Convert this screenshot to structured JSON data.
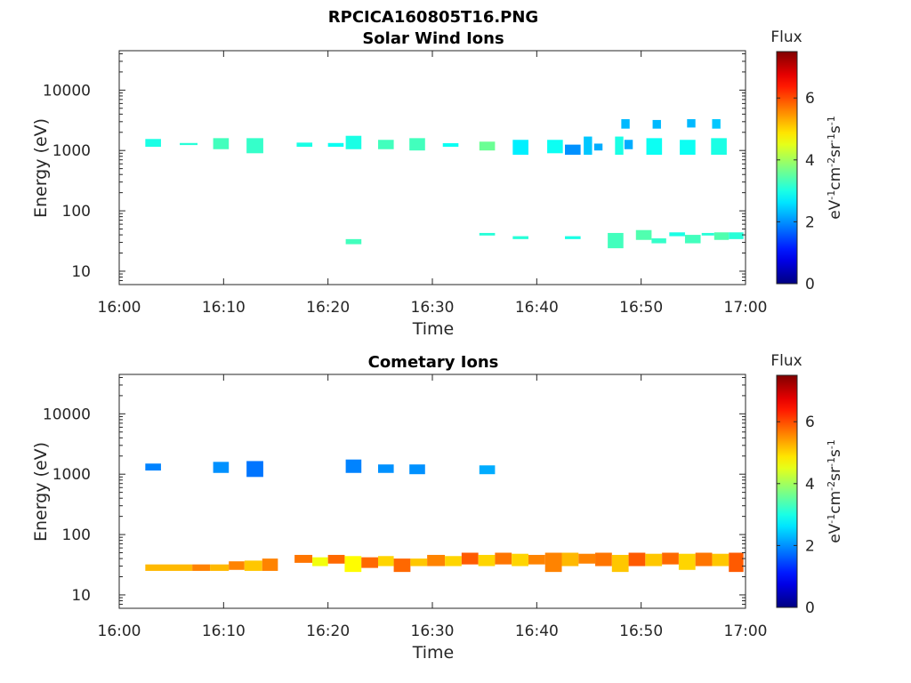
{
  "figure": {
    "title": "RPCICA160805T16.PNG"
  },
  "chart_data": [
    {
      "type": "heatmap",
      "title": "Solar Wind Ions",
      "xlabel": "Time",
      "ylabel": "Energy (eV)",
      "x_ticks": [
        "16:00",
        "16:10",
        "16:20",
        "16:30",
        "16:40",
        "16:50",
        "17:00"
      ],
      "x_range_min": [
        0,
        60
      ],
      "y_ticks": [
        10,
        100,
        1000,
        10000
      ],
      "y_tick_labels": [
        "10",
        "100",
        "1000",
        "10000"
      ],
      "y_scale": "log",
      "ylim": [
        6,
        45000
      ],
      "colorbar": {
        "title": "Flux",
        "label": "eV-1cm-2sr-1s-1",
        "ticks": [
          "0",
          "2",
          "4",
          "6"
        ],
        "range": [
          0,
          7.5
        ],
        "colormap": "jet"
      },
      "cells": [
        {
          "t0": 2.5,
          "t1": 4.0,
          "e0": 1150,
          "e1": 1550,
          "v": 3.0
        },
        {
          "t0": 5.8,
          "t1": 7.5,
          "e0": 1230,
          "e1": 1330,
          "v": 3.1
        },
        {
          "t0": 9.0,
          "t1": 10.5,
          "e0": 1050,
          "e1": 1600,
          "v": 3.3
        },
        {
          "t0": 12.2,
          "t1": 13.8,
          "e0": 900,
          "e1": 1600,
          "v": 3.2
        },
        {
          "t0": 17.0,
          "t1": 18.5,
          "e0": 1150,
          "e1": 1350,
          "v": 3.0
        },
        {
          "t0": 20.0,
          "t1": 21.5,
          "e0": 1150,
          "e1": 1330,
          "v": 2.9
        },
        {
          "t0": 21.7,
          "t1": 23.2,
          "e0": 1050,
          "e1": 1750,
          "v": 3.0
        },
        {
          "t0": 24.8,
          "t1": 26.3,
          "e0": 1050,
          "e1": 1500,
          "v": 3.3
        },
        {
          "t0": 27.8,
          "t1": 29.3,
          "e0": 1000,
          "e1": 1600,
          "v": 3.3
        },
        {
          "t0": 31.0,
          "t1": 32.5,
          "e0": 1150,
          "e1": 1320,
          "v": 2.9
        },
        {
          "t0": 34.5,
          "t1": 36.0,
          "e0": 1000,
          "e1": 1400,
          "v": 3.6
        },
        {
          "t0": 37.7,
          "t1": 39.2,
          "e0": 850,
          "e1": 1500,
          "v": 2.7
        },
        {
          "t0": 41.0,
          "t1": 42.5,
          "e0": 900,
          "e1": 1500,
          "v": 2.9
        },
        {
          "t0": 42.7,
          "t1": 44.2,
          "e0": 850,
          "e1": 1250,
          "v": 2.0
        },
        {
          "t0": 44.5,
          "t1": 45.3,
          "e0": 850,
          "e1": 1700,
          "v": 2.4
        },
        {
          "t0": 45.5,
          "t1": 46.3,
          "e0": 1000,
          "e1": 1300,
          "v": 2.2
        },
        {
          "t0": 47.5,
          "t1": 48.3,
          "e0": 850,
          "e1": 1700,
          "v": 3.0
        },
        {
          "t0": 48.1,
          "t1": 48.9,
          "e0": 2300,
          "e1": 3300,
          "v": 2.3
        },
        {
          "t0": 48.4,
          "t1": 49.2,
          "e0": 1050,
          "e1": 1500,
          "v": 2.2
        },
        {
          "t0": 50.5,
          "t1": 52.0,
          "e0": 850,
          "e1": 1600,
          "v": 2.9
        },
        {
          "t0": 51.1,
          "t1": 51.9,
          "e0": 2300,
          "e1": 3200,
          "v": 2.3
        },
        {
          "t0": 53.7,
          "t1": 55.2,
          "e0": 850,
          "e1": 1500,
          "v": 2.9
        },
        {
          "t0": 54.4,
          "t1": 55.2,
          "e0": 2400,
          "e1": 3300,
          "v": 2.3
        },
        {
          "t0": 56.7,
          "t1": 58.2,
          "e0": 850,
          "e1": 1600,
          "v": 3.0
        },
        {
          "t0": 56.8,
          "t1": 57.6,
          "e0": 2300,
          "e1": 3300,
          "v": 2.4
        },
        {
          "t0": 21.7,
          "t1": 23.2,
          "e0": 28,
          "e1": 34,
          "v": 3.3
        },
        {
          "t0": 34.5,
          "t1": 36.0,
          "e0": 39,
          "e1": 43,
          "v": 3.1
        },
        {
          "t0": 37.7,
          "t1": 39.2,
          "e0": 34,
          "e1": 38,
          "v": 3.1
        },
        {
          "t0": 42.7,
          "t1": 44.2,
          "e0": 34,
          "e1": 38,
          "v": 3.0
        },
        {
          "t0": 46.8,
          "t1": 48.3,
          "e0": 24,
          "e1": 43,
          "v": 3.3
        },
        {
          "t0": 49.5,
          "t1": 51.0,
          "e0": 33,
          "e1": 48,
          "v": 3.4
        },
        {
          "t0": 51.0,
          "t1": 52.4,
          "e0": 29,
          "e1": 35,
          "v": 3.2
        },
        {
          "t0": 52.7,
          "t1": 54.2,
          "e0": 38,
          "e1": 44,
          "v": 3.0
        },
        {
          "t0": 54.2,
          "t1": 55.7,
          "e0": 29,
          "e1": 40,
          "v": 3.3
        },
        {
          "t0": 55.8,
          "t1": 57.0,
          "e0": 39,
          "e1": 43,
          "v": 3.1
        },
        {
          "t0": 57.0,
          "t1": 58.4,
          "e0": 33,
          "e1": 44,
          "v": 3.4
        },
        {
          "t0": 58.4,
          "t1": 59.8,
          "e0": 34,
          "e1": 44,
          "v": 3.1
        }
      ]
    },
    {
      "type": "heatmap",
      "title": "Cometary Ions",
      "xlabel": "Time",
      "ylabel": "Energy (eV)",
      "x_ticks": [
        "16:00",
        "16:10",
        "16:20",
        "16:30",
        "16:40",
        "16:50",
        "17:00"
      ],
      "x_range_min": [
        0,
        60
      ],
      "y_ticks": [
        10,
        100,
        1000,
        10000
      ],
      "y_tick_labels": [
        "10",
        "100",
        "1000",
        "10000"
      ],
      "y_scale": "log",
      "ylim": [
        6,
        45000
      ],
      "colorbar": {
        "title": "Flux",
        "label": "eV-1cm-2sr-1s-1",
        "ticks": [
          "0",
          "2",
          "4",
          "6"
        ],
        "range": [
          0,
          7.5
        ],
        "colormap": "jet"
      },
      "cells": [
        {
          "t0": 2.5,
          "t1": 4.0,
          "e0": 1150,
          "e1": 1500,
          "v": 1.9
        },
        {
          "t0": 9.0,
          "t1": 10.5,
          "e0": 1050,
          "e1": 1600,
          "v": 2.0
        },
        {
          "t0": 12.2,
          "t1": 13.8,
          "e0": 900,
          "e1": 1650,
          "v": 1.8
        },
        {
          "t0": 21.7,
          "t1": 23.2,
          "e0": 1050,
          "e1": 1750,
          "v": 1.9
        },
        {
          "t0": 24.8,
          "t1": 26.3,
          "e0": 1050,
          "e1": 1450,
          "v": 2.0
        },
        {
          "t0": 27.8,
          "t1": 29.3,
          "e0": 1000,
          "e1": 1450,
          "v": 2.0
        },
        {
          "t0": 34.5,
          "t1": 36.0,
          "e0": 1000,
          "e1": 1400,
          "v": 2.2
        },
        {
          "t0": 2.5,
          "t1": 7.0,
          "e0": 25,
          "e1": 32,
          "v": 5.2
        },
        {
          "t0": 7.0,
          "t1": 8.7,
          "e0": 25,
          "e1": 32,
          "v": 5.6
        },
        {
          "t0": 8.7,
          "t1": 10.5,
          "e0": 25,
          "e1": 32,
          "v": 5.2
        },
        {
          "t0": 10.5,
          "t1": 12.0,
          "e0": 26,
          "e1": 36,
          "v": 5.6
        },
        {
          "t0": 12.0,
          "t1": 13.7,
          "e0": 25,
          "e1": 37,
          "v": 5.1
        },
        {
          "t0": 13.7,
          "t1": 15.2,
          "e0": 25,
          "e1": 40,
          "v": 5.6
        },
        {
          "t0": 16.8,
          "t1": 18.5,
          "e0": 34,
          "e1": 46,
          "v": 5.7
        },
        {
          "t0": 18.5,
          "t1": 20.0,
          "e0": 30,
          "e1": 42,
          "v": 4.6
        },
        {
          "t0": 20.0,
          "t1": 21.6,
          "e0": 33,
          "e1": 46,
          "v": 5.8
        },
        {
          "t0": 21.6,
          "t1": 23.2,
          "e0": 24,
          "e1": 44,
          "v": 4.7
        },
        {
          "t0": 23.2,
          "t1": 24.8,
          "e0": 28,
          "e1": 42,
          "v": 5.8
        },
        {
          "t0": 24.8,
          "t1": 26.3,
          "e0": 30,
          "e1": 44,
          "v": 5.0
        },
        {
          "t0": 26.3,
          "t1": 27.9,
          "e0": 24,
          "e1": 40,
          "v": 5.8
        },
        {
          "t0": 27.9,
          "t1": 29.5,
          "e0": 30,
          "e1": 40,
          "v": 5.1
        },
        {
          "t0": 29.5,
          "t1": 31.2,
          "e0": 30,
          "e1": 46,
          "v": 5.6
        },
        {
          "t0": 31.2,
          "t1": 32.8,
          "e0": 30,
          "e1": 44,
          "v": 5.0
        },
        {
          "t0": 32.8,
          "t1": 34.4,
          "e0": 32,
          "e1": 50,
          "v": 5.9
        },
        {
          "t0": 34.4,
          "t1": 36.0,
          "e0": 30,
          "e1": 46,
          "v": 5.0
        },
        {
          "t0": 36.0,
          "t1": 37.6,
          "e0": 32,
          "e1": 50,
          "v": 5.7
        },
        {
          "t0": 37.6,
          "t1": 39.2,
          "e0": 30,
          "e1": 48,
          "v": 5.0
        },
        {
          "t0": 39.2,
          "t1": 40.8,
          "e0": 32,
          "e1": 46,
          "v": 5.6
        },
        {
          "t0": 40.8,
          "t1": 42.4,
          "e0": 24,
          "e1": 50,
          "v": 5.6
        },
        {
          "t0": 42.4,
          "t1": 44.0,
          "e0": 30,
          "e1": 50,
          "v": 5.2
        },
        {
          "t0": 44.0,
          "t1": 45.6,
          "e0": 33,
          "e1": 48,
          "v": 5.6
        },
        {
          "t0": 45.6,
          "t1": 47.2,
          "e0": 30,
          "e1": 50,
          "v": 5.7
        },
        {
          "t0": 47.2,
          "t1": 48.8,
          "e0": 24,
          "e1": 46,
          "v": 5.1
        },
        {
          "t0": 48.8,
          "t1": 50.4,
          "e0": 30,
          "e1": 50,
          "v": 5.9
        },
        {
          "t0": 50.4,
          "t1": 52.0,
          "e0": 30,
          "e1": 48,
          "v": 5.1
        },
        {
          "t0": 52.0,
          "t1": 53.6,
          "e0": 32,
          "e1": 50,
          "v": 5.8
        },
        {
          "t0": 53.6,
          "t1": 55.2,
          "e0": 26,
          "e1": 48,
          "v": 5.0
        },
        {
          "t0": 55.2,
          "t1": 56.8,
          "e0": 30,
          "e1": 50,
          "v": 5.7
        },
        {
          "t0": 56.8,
          "t1": 58.4,
          "e0": 30,
          "e1": 48,
          "v": 5.1
        },
        {
          "t0": 58.4,
          "t1": 59.8,
          "e0": 24,
          "e1": 50,
          "v": 5.9
        }
      ]
    }
  ]
}
